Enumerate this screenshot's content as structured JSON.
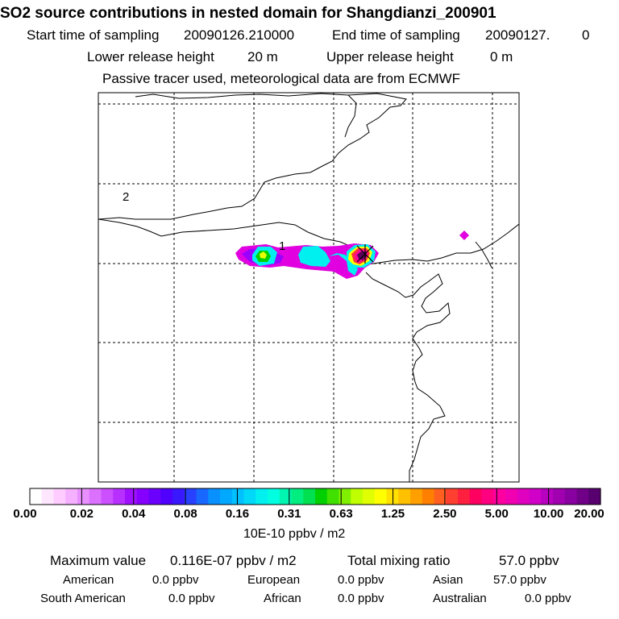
{
  "header": {
    "title": "SO2 source contributions in nested domain for Shangdianzi_200901",
    "start_label": "Start time of sampling",
    "start_value": "20090126.210000",
    "end_label": "End time of sampling",
    "end_value": "20090127.",
    "end_extra": "0",
    "lower_label": "Lower release height",
    "lower_value": "20 m",
    "upper_label": "Upper release height",
    "upper_value": "0 m",
    "tracer_note": "Passive tracer used, meteorological data are from ECMWF"
  },
  "map": {
    "labels": [
      "1",
      "2"
    ],
    "receptor_marker": "x-marker",
    "colors": {
      "frame": "#000000",
      "grid": "#000000",
      "coast": "#000000",
      "magenta": "#e000e0",
      "violet": "#9a00ff",
      "green": "#00d000",
      "yellow": "#ffff00",
      "cyan": "#00f0f0",
      "darkpurple": "#5a005a",
      "red": "#ff3040"
    }
  },
  "colorbar": {
    "ticks": [
      "0.00",
      "0.02",
      "0.04",
      "0.08",
      "0.16",
      "0.31",
      "0.63",
      "1.25",
      "2.50",
      "5.00",
      "10.00",
      "20.00"
    ],
    "units": "10E-10 ppbv / m2",
    "colors": [
      "#ffffff",
      "#ffe6ff",
      "#ffccff",
      "#f5b0ff",
      "#e890ff",
      "#dc70ff",
      "#cc50ff",
      "#b830ff",
      "#9f10ff",
      "#8600ff",
      "#6c00ff",
      "#5000ff",
      "#3a18ff",
      "#2840ff",
      "#1868ff",
      "#0890ff",
      "#00a8ff",
      "#00c0ff",
      "#00d8f8",
      "#00f0f0",
      "#00ffe0",
      "#00f5b0",
      "#00ee80",
      "#00e050",
      "#00d000",
      "#40e000",
      "#80f000",
      "#c0ff00",
      "#e0ff00",
      "#ffff00",
      "#ffe000",
      "#ffc000",
      "#ffa000",
      "#ff8000",
      "#ff6020",
      "#ff4030",
      "#ff2040",
      "#ff0060",
      "#ff0080",
      "#ff00a0",
      "#f000b0",
      "#e000c0",
      "#d000c8",
      "#b800c0",
      "#a000b0",
      "#8800a0",
      "#700088",
      "#580070"
    ]
  },
  "stats": {
    "max_label": "Maximum value",
    "max_value": "0.116E-07 ppbv / m2",
    "total_label": "Total mixing ratio",
    "total_value": "57.0 ppbv",
    "regions": [
      {
        "name": "American",
        "value": "0.0 ppbv"
      },
      {
        "name": "European",
        "value": "0.0 ppbv"
      },
      {
        "name": "Asian",
        "value": "57.0 ppbv"
      },
      {
        "name": "South American",
        "value": "0.0 ppbv"
      },
      {
        "name": "African",
        "value": "0.0 ppbv"
      },
      {
        "name": "Australian",
        "value": "0.0 ppbv"
      }
    ]
  }
}
